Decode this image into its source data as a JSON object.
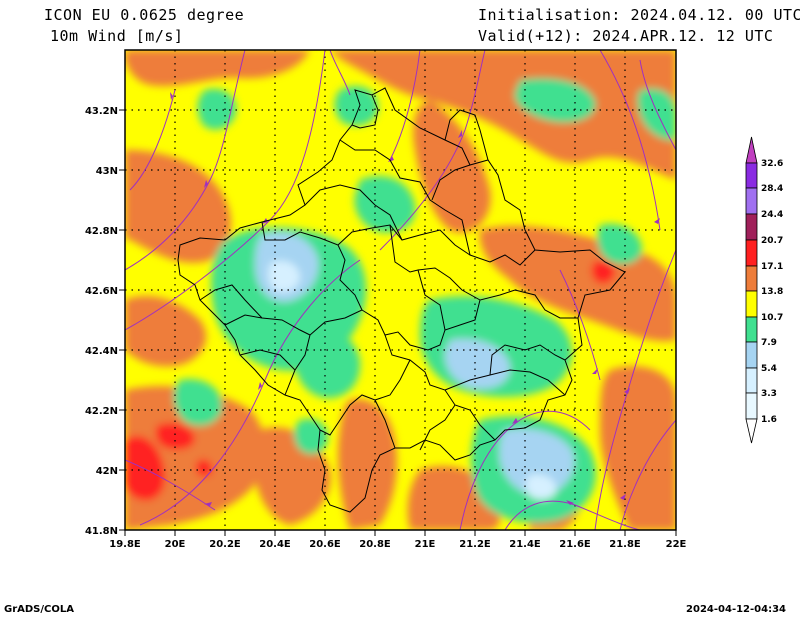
{
  "header": {
    "model": "ICON EU 0.0625 degree",
    "variable": "10m Wind [m/s]",
    "init": "Initialisation: 2024.04.12. 00 UTC",
    "valid": "Valid(+12): 2024.APR.12. 12 UTC"
  },
  "map": {
    "lon_labels": [
      "19.8E",
      "20E",
      "20.2E",
      "20.4E",
      "20.6E",
      "20.8E",
      "21E",
      "21.2E",
      "21.4E",
      "21.6E",
      "21.8E",
      "22E"
    ],
    "lat_labels": [
      "43.2N",
      "43N",
      "42.8N",
      "42.6N",
      "42.4N",
      "42.2N",
      "42N",
      "41.8N"
    ]
  },
  "legend": {
    "values": [
      "32.6",
      "28.4",
      "24.4",
      "20.7",
      "17.1",
      "13.8",
      "10.7",
      "7.9",
      "5.4",
      "3.3",
      "1.6"
    ],
    "colors": [
      "#8a2be2",
      "#a070f0",
      "#a0205a",
      "#ff2020",
      "#ee7d3a",
      "#ffff00",
      "#40e090",
      "#a6d4f2",
      "#d6f0ff",
      "#e8f8ff"
    ],
    "top_arrow_color": "#c040c0"
  },
  "footer": {
    "left": "GrADS/COLA",
    "right": "2024-04-12-04:34"
  }
}
